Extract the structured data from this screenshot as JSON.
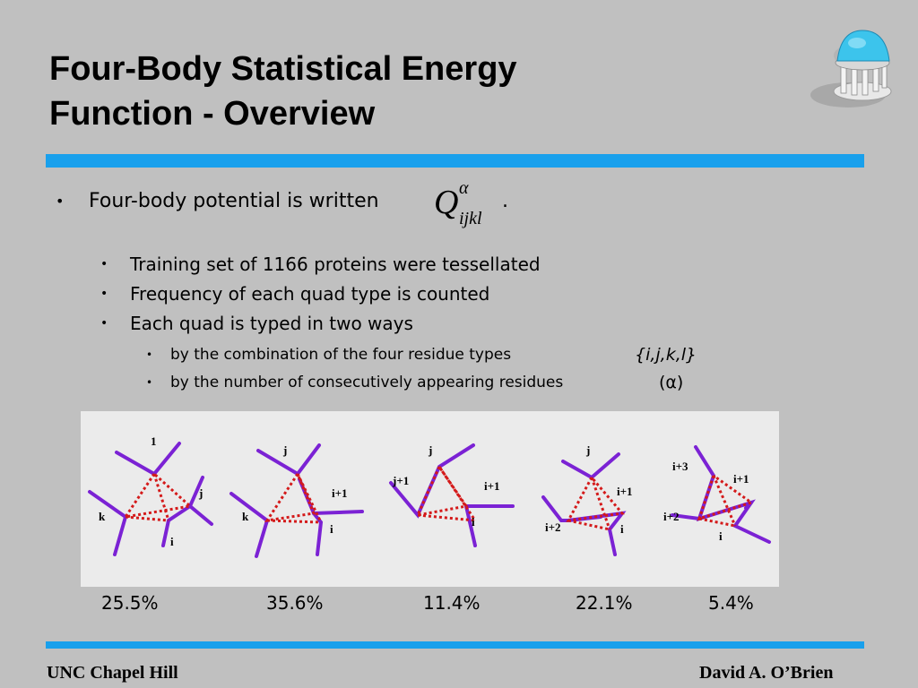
{
  "title": {
    "line1": "Four-Body Statistical Energy",
    "line2": "Function - Overview"
  },
  "bullets": {
    "main": "Four-body potential is written",
    "main_tail": ".",
    "formula": {
      "base": "Q",
      "superscript": "α",
      "subscript": "ijkl"
    },
    "sub": [
      "Training set of 1166 proteins were tessellated",
      "Frequency of each quad type is counted",
      "Each quad is typed in two ways"
    ],
    "subsub": [
      {
        "text": "by the combination of the four residue types",
        "extra": "{i,j,k,l}"
      },
      {
        "text": "by the number of consecutively appearing residues",
        "extra": "(α)"
      }
    ]
  },
  "diagrams": [
    {
      "labels": [
        "1",
        "j",
        "k",
        "i"
      ],
      "percent": "25.5%"
    },
    {
      "labels": [
        "j",
        "i+1",
        "k",
        "i"
      ],
      "percent": "35.6%"
    },
    {
      "labels": [
        "j",
        "j+1",
        "i+1",
        "i"
      ],
      "percent": "11.4%"
    },
    {
      "labels": [
        "j",
        "i+1",
        "i+2",
        "i"
      ],
      "percent": "22.1%"
    },
    {
      "labels": [
        "i+3",
        "i+1",
        "i+2",
        "i"
      ],
      "percent": "5.4%"
    }
  ],
  "footer": {
    "left": "UNC Chapel Hill",
    "right": "David A. O’Brien"
  },
  "colors": {
    "background": "#c0c0c0",
    "accent_rule": "#19a0ec",
    "panel": "#ebebeb",
    "backbone": "#7b22d4",
    "contact": "#d41a1a"
  },
  "icons": {
    "logo": "old-well-dome-icon",
    "bullet": "bullet-dot-icon"
  }
}
